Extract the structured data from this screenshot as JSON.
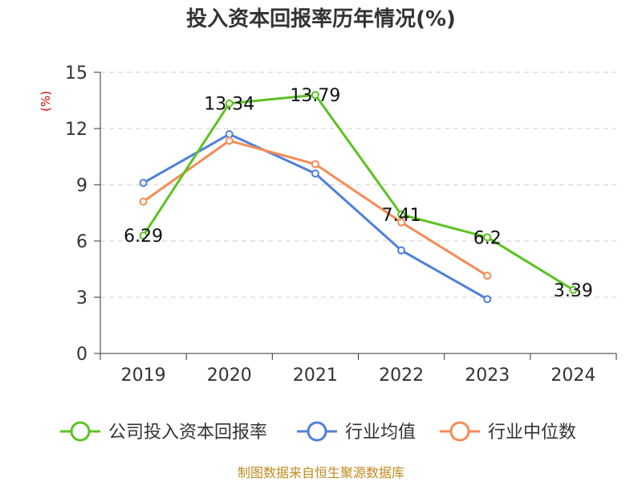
{
  "chart_data": {
    "type": "line",
    "title": "投入资本回报率历年情况(%)",
    "ylabel": "(%)",
    "xlabel": "",
    "categories": [
      "2019",
      "2020",
      "2021",
      "2022",
      "2023",
      "2024"
    ],
    "ylim": [
      0,
      15
    ],
    "yticks": [
      0,
      3,
      6,
      9,
      12,
      15
    ],
    "grid": true,
    "legend_position": "bottom",
    "series": [
      {
        "name": "公司投入资本回报率",
        "color": "#5cc222",
        "values": [
          6.29,
          13.34,
          13.79,
          7.41,
          6.2,
          3.39
        ],
        "labels": [
          "6.29",
          "13.34",
          "13.79",
          "7.41",
          "6.2",
          "3.39"
        ]
      },
      {
        "name": "行业均值",
        "color": "#4f80dd",
        "values": [
          9.1,
          11.7,
          9.6,
          5.5,
          2.9,
          null
        ]
      },
      {
        "name": "行业中位数",
        "color": "#f58c55",
        "values": [
          8.1,
          11.35,
          10.1,
          7.0,
          4.15,
          null
        ]
      }
    ],
    "source": "制图数据来自恒生聚源数据库"
  }
}
